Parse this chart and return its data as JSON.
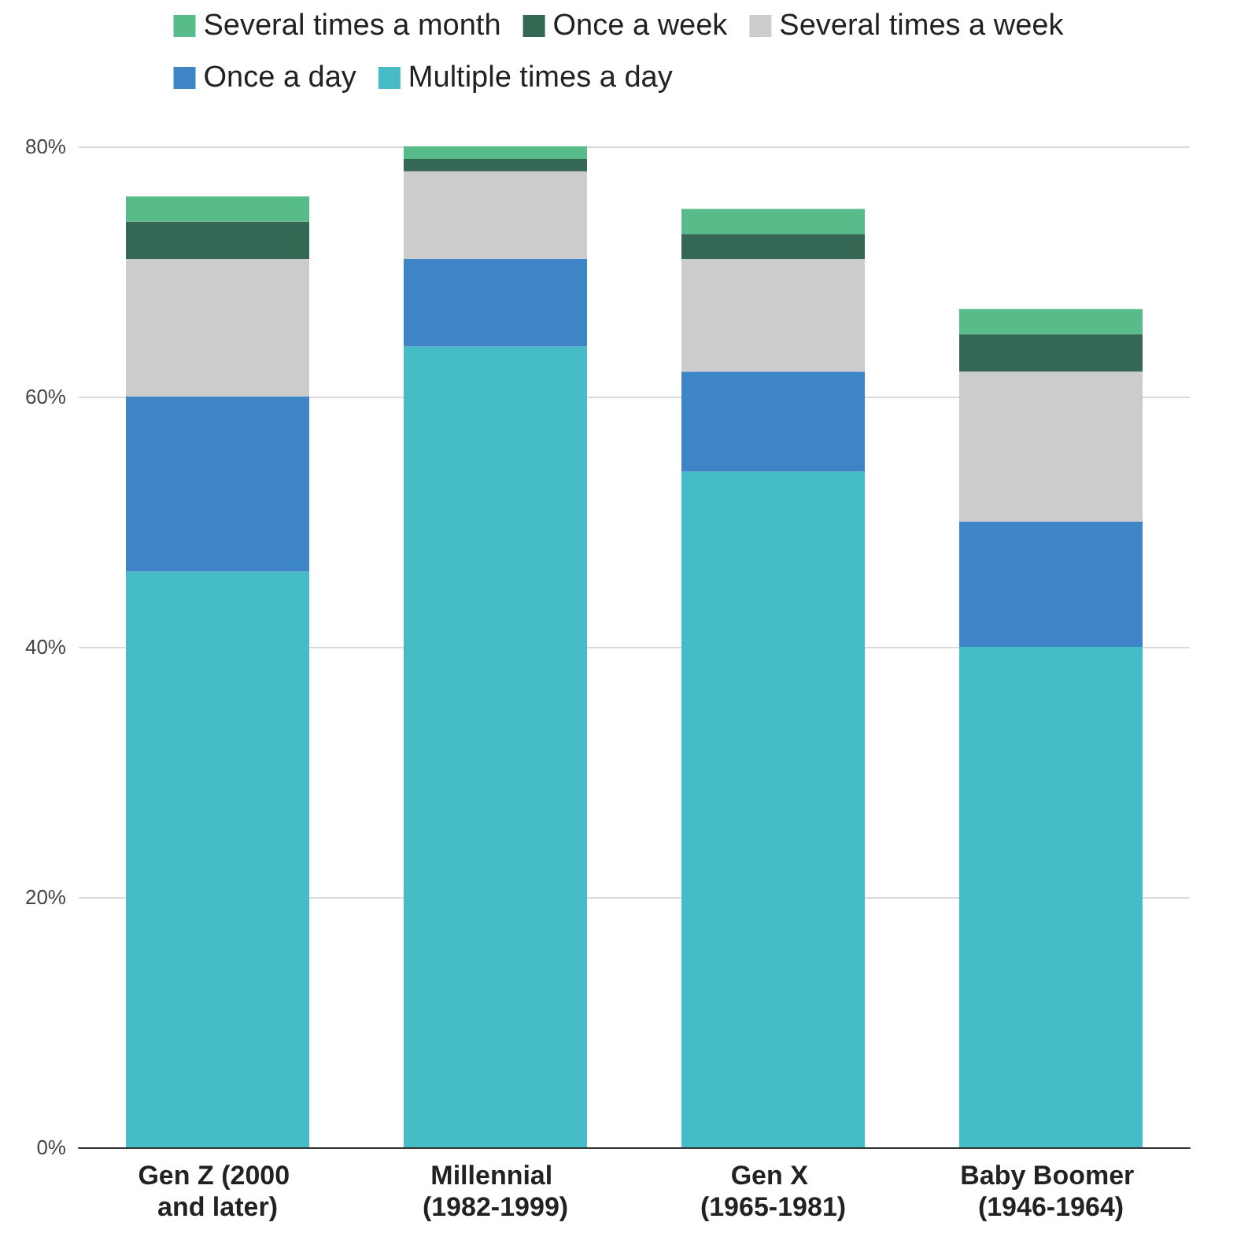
{
  "chart_data": {
    "type": "bar",
    "stacked": true,
    "categories": [
      "Gen Z (2000 and later)",
      "Millennial (1982-1999)",
      "Gen X (1965-1981)",
      "Baby Boomer (1946-1964)"
    ],
    "series": [
      {
        "name": "Multiple times a day",
        "color": "#46bdc6",
        "values": [
          46,
          64,
          54,
          40
        ]
      },
      {
        "name": "Once a day",
        "color": "#3d85c6",
        "values": [
          14,
          7,
          8,
          10
        ]
      },
      {
        "name": "Several times a week",
        "color": "#cccccc",
        "values": [
          11,
          7,
          9,
          12
        ]
      },
      {
        "name": "Once a week",
        "color": "#356854",
        "values": [
          3,
          1,
          2,
          3
        ]
      },
      {
        "name": "Several times a month",
        "color": "#57bb8a",
        "values": [
          2,
          1,
          2,
          2
        ]
      }
    ],
    "ylim": [
      0,
      80
    ],
    "yticks": [
      {
        "value": 0,
        "label": "0%"
      },
      {
        "value": 20,
        "label": "20%"
      },
      {
        "value": 40,
        "label": "40%"
      },
      {
        "value": 60,
        "label": "60%"
      },
      {
        "value": 80,
        "label": "80%"
      }
    ],
    "grid": "y",
    "legend": "top"
  }
}
